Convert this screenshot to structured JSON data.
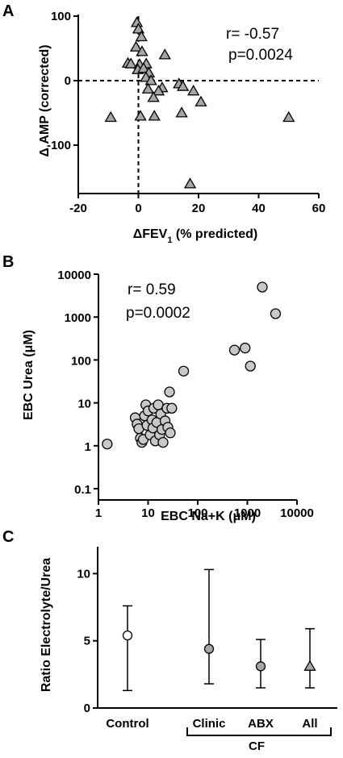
{
  "chart_data": [
    {
      "panel": "A",
      "type": "scatter",
      "xlabel_main": "ΔFEV",
      "xlabel_sub": "1",
      "xlabel_tail": " (% predicted)",
      "ylabel": "Δ AMP (corrected)",
      "xlim": [
        -20,
        60
      ],
      "ylim": [
        -175,
        100
      ],
      "xticks": [
        -20,
        0,
        20,
        40,
        60
      ],
      "yticks": [
        100,
        0,
        -100
      ],
      "marker": "triangle",
      "marker_color": "#a6a6a6",
      "reference_lines": {
        "x": 0,
        "y": 0,
        "style": "dashed"
      },
      "annotation_r": "r= -0.57",
      "annotation_p": "p=0.0024",
      "points": [
        {
          "x": -0.5,
          "y": 90
        },
        {
          "x": 0,
          "y": 80
        },
        {
          "x": 1,
          "y": 68
        },
        {
          "x": -0.8,
          "y": 52
        },
        {
          "x": 1.2,
          "y": 45
        },
        {
          "x": 8.8,
          "y": 40
        },
        {
          "x": -3.5,
          "y": 27
        },
        {
          "x": -2.5,
          "y": 26
        },
        {
          "x": 0.4,
          "y": 25
        },
        {
          "x": 2.6,
          "y": 26
        },
        {
          "x": -0.2,
          "y": 17
        },
        {
          "x": 1.7,
          "y": 19
        },
        {
          "x": 3.5,
          "y": 12
        },
        {
          "x": 2.5,
          "y": 5
        },
        {
          "x": 4.2,
          "y": 0
        },
        {
          "x": 13.5,
          "y": -5
        },
        {
          "x": 14.8,
          "y": -9
        },
        {
          "x": 7.9,
          "y": -11
        },
        {
          "x": 3.2,
          "y": -13
        },
        {
          "x": 6.7,
          "y": -16
        },
        {
          "x": 18.3,
          "y": -16
        },
        {
          "x": 5,
          "y": -26
        },
        {
          "x": 20.8,
          "y": -33
        },
        {
          "x": 14.4,
          "y": -50
        },
        {
          "x": -9.2,
          "y": -57
        },
        {
          "x": 0.7,
          "y": -55
        },
        {
          "x": 5.3,
          "y": -55
        },
        {
          "x": 50,
          "y": -57
        },
        {
          "x": 17.2,
          "y": -160
        }
      ]
    },
    {
      "panel": "B",
      "type": "scatter",
      "xscale": "log",
      "yscale": "log",
      "xlabel": "EBC Na+K (μM)",
      "ylabel": "EBC Urea (μM)",
      "xlim": [
        1,
        10000
      ],
      "ylim": [
        0.1,
        10000
      ],
      "xticks": [
        "1",
        "10",
        "100",
        "1000",
        "10000"
      ],
      "yticks": [
        "10000",
        "1000",
        "100",
        "10",
        "1",
        "0.1"
      ],
      "marker": "circle",
      "marker_color": "#c8c8c8",
      "annotation_r": "r= 0.59",
      "annotation_p": "p=0.0002",
      "points": [
        {
          "x": 1.5,
          "y": 1.1
        },
        {
          "x": 5.5,
          "y": 4.5
        },
        {
          "x": 6,
          "y": 3.2
        },
        {
          "x": 6.5,
          "y": 2.5
        },
        {
          "x": 7,
          "y": 1.5
        },
        {
          "x": 7.5,
          "y": 1.2
        },
        {
          "x": 8,
          "y": 1.4
        },
        {
          "x": 8.5,
          "y": 5
        },
        {
          "x": 9,
          "y": 9
        },
        {
          "x": 9.5,
          "y": 3
        },
        {
          "x": 10,
          "y": 6.5
        },
        {
          "x": 11,
          "y": 1.8
        },
        {
          "x": 12,
          "y": 4
        },
        {
          "x": 12.5,
          "y": 2.6
        },
        {
          "x": 13,
          "y": 7.5
        },
        {
          "x": 14,
          "y": 1.3
        },
        {
          "x": 15,
          "y": 3.5
        },
        {
          "x": 16,
          "y": 9
        },
        {
          "x": 17,
          "y": 1.8
        },
        {
          "x": 18,
          "y": 5.5
        },
        {
          "x": 19,
          "y": 2.4
        },
        {
          "x": 20,
          "y": 1.2
        },
        {
          "x": 22,
          "y": 3.8
        },
        {
          "x": 24,
          "y": 7.5
        },
        {
          "x": 25,
          "y": 2.7
        },
        {
          "x": 27,
          "y": 18
        },
        {
          "x": 28,
          "y": 2
        },
        {
          "x": 30,
          "y": 7.5
        },
        {
          "x": 52,
          "y": 55
        },
        {
          "x": 550,
          "y": 170
        },
        {
          "x": 900,
          "y": 190
        },
        {
          "x": 1150,
          "y": 72
        },
        {
          "x": 2000,
          "y": 5000
        },
        {
          "x": 3700,
          "y": 1200
        }
      ]
    },
    {
      "panel": "C",
      "type": "scatter",
      "ylabel": "Ratio Electrolyte/Urea",
      "ylim": [
        0,
        12
      ],
      "yticks": [
        10,
        5,
        0
      ],
      "categories": [
        "Control",
        "Clinic",
        "ABX",
        "All"
      ],
      "group_label": "CF",
      "points": [
        {
          "category": "Control",
          "mean": 5.4,
          "low": 1.3,
          "high": 7.6,
          "marker": "circle",
          "color": "#ffffff"
        },
        {
          "category": "Clinic",
          "mean": 4.4,
          "low": 1.8,
          "high": 10.3,
          "marker": "circle",
          "color": "#a6a6a6"
        },
        {
          "category": "ABX",
          "mean": 3.1,
          "low": 1.5,
          "high": 5.1,
          "marker": "circle",
          "color": "#a6a6a6"
        },
        {
          "category": "All",
          "mean": 3.1,
          "low": 1.5,
          "high": 5.9,
          "marker": "triangle",
          "color": "#a6a6a6"
        }
      ]
    }
  ]
}
